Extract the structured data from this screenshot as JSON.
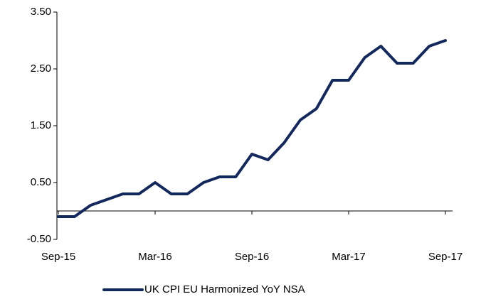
{
  "chart_data": {
    "type": "line",
    "categories": [
      "Sep-15",
      null,
      null,
      null,
      null,
      null,
      "Mar-16",
      null,
      null,
      null,
      null,
      null,
      "Sep-16",
      null,
      null,
      null,
      null,
      null,
      "Mar-17",
      null,
      null,
      null,
      null,
      null,
      "Sep-17"
    ],
    "series": [
      {
        "name": "UK CPI EU Harmonized YoY NSA",
        "color": "#13295e",
        "values": [
          -0.1,
          -0.1,
          0.1,
          0.2,
          0.3,
          0.3,
          0.5,
          0.3,
          0.3,
          0.5,
          0.6,
          0.6,
          1.0,
          0.9,
          1.2,
          1.6,
          1.8,
          2.3,
          2.3,
          2.7,
          2.9,
          2.6,
          2.6,
          2.9,
          3.0
        ]
      }
    ],
    "ylim": [
      -0.5,
      3.5
    ],
    "yticks": [
      {
        "value": -0.5,
        "label": "-0.50"
      },
      {
        "value": 0.5,
        "label": "0.50"
      },
      {
        "value": 1.5,
        "label": "1.50"
      },
      {
        "value": 2.5,
        "label": "2.50"
      },
      {
        "value": 3.5,
        "label": "3.50"
      }
    ],
    "legend": "bottom"
  }
}
